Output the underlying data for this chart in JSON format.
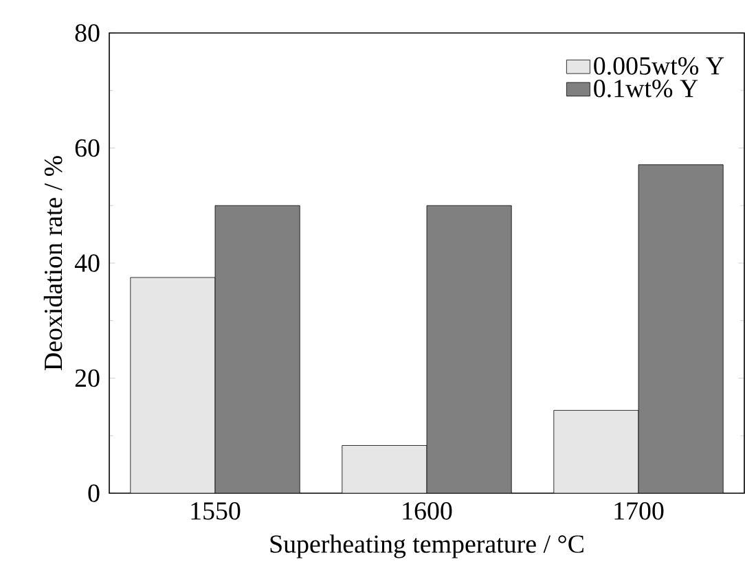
{
  "chart_data": {
    "type": "bar",
    "xlabel": "Superheating temperature / °C",
    "ylabel": "Deoxidation rate / %",
    "categories": [
      "1550",
      "1600",
      "1700"
    ],
    "series": [
      {
        "name": "0.005wt% Y",
        "color": "#e6e6e6",
        "values": [
          37.5,
          8.3,
          14.4
        ]
      },
      {
        "name": "0.1wt% Y",
        "color": "#808080",
        "values": [
          50.0,
          50.0,
          57.1
        ]
      }
    ],
    "ylim": [
      0,
      80
    ],
    "yticks": [
      0,
      20,
      40,
      60,
      80
    ],
    "legend": "top right",
    "grid": false
  }
}
